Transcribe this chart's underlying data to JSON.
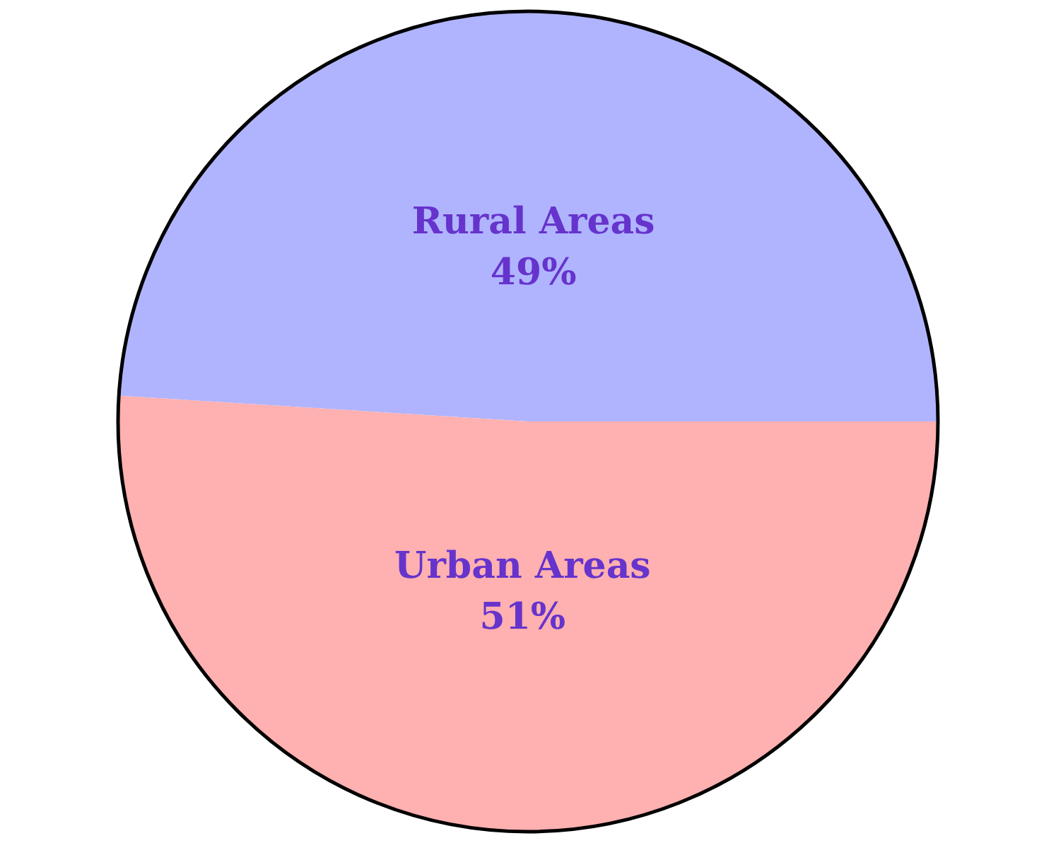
{
  "chart_data": {
    "type": "pie",
    "categories": [
      "Rural Areas",
      "Urban Areas"
    ],
    "values": [
      49,
      51
    ],
    "colors": [
      "#b0b4ff",
      "#ffb0b0"
    ],
    "value_labels": [
      "49%",
      "51%"
    ],
    "legend": false
  }
}
